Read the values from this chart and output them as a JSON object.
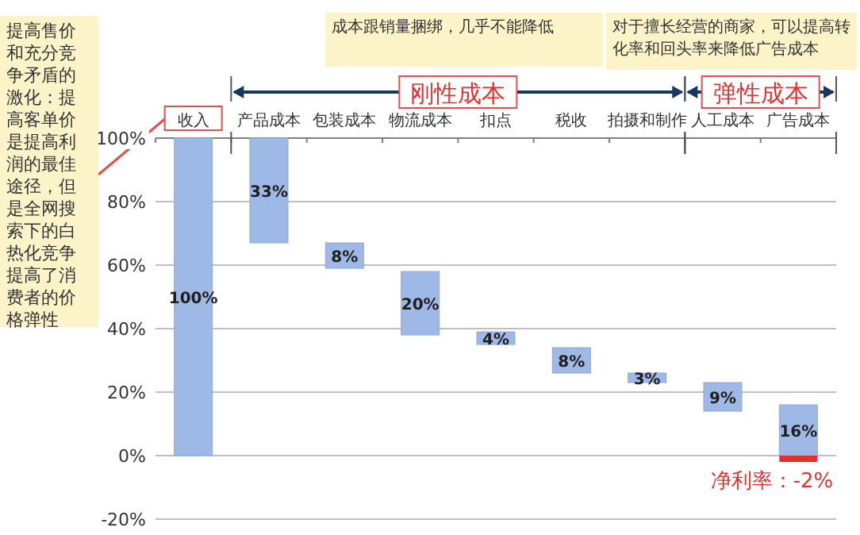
{
  "chart_data": {
    "type": "bar",
    "categories": [
      "收入",
      "产品成本",
      "包装成本",
      "物流成本",
      "扣点",
      "税收",
      "拍摄和制作",
      "人工成本",
      "广告成本"
    ],
    "value_labels": [
      "100%",
      "33%",
      "8%",
      "20%",
      "4%",
      "8%",
      "3%",
      "9%",
      "16%"
    ],
    "series": [
      {
        "color": "#9fb9e6",
        "values": [
          100,
          33,
          8,
          20,
          4,
          8,
          3,
          9,
          16
        ],
        "base": [
          0,
          67,
          59,
          38,
          35,
          26,
          23,
          14,
          0
        ]
      },
      {
        "color": "#e03030",
        "values": [
          null,
          null,
          null,
          null,
          null,
          null,
          null,
          null,
          -2
        ]
      }
    ],
    "ylim": [
      -20,
      100
    ],
    "yticks": [
      {
        "value": -20,
        "label": "-20%"
      },
      {
        "value": 0,
        "label": "0%"
      },
      {
        "value": 20,
        "label": "20%"
      },
      {
        "value": 40,
        "label": "40%"
      },
      {
        "value": 60,
        "label": "60%"
      },
      {
        "value": 80,
        "label": "80%"
      },
      {
        "value": 100,
        "label": "100%"
      }
    ],
    "grid": "y",
    "annotations": [
      "提高售价和充分竞争矛盾的激化：提高客单价是提高利润的最佳途径，但是全网搜索下的白热化竞争提高了消费者的价格弹性",
      "成本跟销量捆绑，几乎不能降低",
      "对于擅长经营的商家，可以提高转化率和回头率来降低广告成本",
      "刚性成本",
      "弹性成本",
      {
        "text": "净利率：-2%",
        "x": "广告成本",
        "y": -2
      }
    ]
  }
}
